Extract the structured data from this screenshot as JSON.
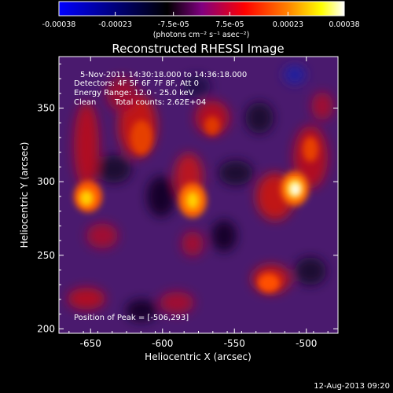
{
  "colorbar": {
    "tick_labels": [
      "-0.00038",
      "-0.00023",
      "-7.5e-05",
      "7.5e-05",
      "0.00023",
      "0.00038"
    ],
    "tick_values": [
      -0.00038,
      -0.00023,
      -7.5e-05,
      7.5e-05,
      0.00023,
      0.00038
    ],
    "range": [
      -0.00038,
      0.00038
    ],
    "units_label": "(photons cm⁻² s⁻¹ asec⁻²)",
    "colormap": [
      "#0000ff",
      "#000000",
      "#800080",
      "#ff0000",
      "#ff8000",
      "#ffff00",
      "#ffffff"
    ]
  },
  "annotations": {
    "time_range": "5-Nov-2011 14:30:18.000 to 14:36:18.000",
    "detectors": "Detectors: 4F 5F 6F 7F 8F, Att 0",
    "energy": "Energy Range: 12.0 - 25.0 keV",
    "method": "Clean",
    "total_counts": "Total counts: 2.62E+04",
    "peak": "Position of Peak = [-506,293]",
    "timestamp": "12-Aug-2013 09:20"
  },
  "chart_data": {
    "type": "heatmap",
    "title": "Reconstructed RHESSI Image",
    "xlabel": "Heliocentric X (arcsec)",
    "ylabel": "Heliocentric Y (arcsec)",
    "xlim": [
      -672,
      -478
    ],
    "ylim": [
      197,
      385
    ],
    "xticks": [
      -650,
      -600,
      -550,
      -500
    ],
    "yticks": [
      200,
      250,
      300,
      350
    ],
    "peak_position": [
      -506,
      293
    ],
    "bright_sources": [
      {
        "x": -506,
        "y": 293,
        "level": 1.0
      },
      {
        "x": -578,
        "y": 287,
        "level": 0.82
      },
      {
        "x": -656,
        "y": 288,
        "level": 0.78
      },
      {
        "x": -622,
        "y": 340,
        "level": 0.55
      },
      {
        "x": -565,
        "y": 352,
        "level": 0.45
      },
      {
        "x": -522,
        "y": 228,
        "level": 0.6
      },
      {
        "x": -604,
        "y": 228,
        "level": 0.45
      },
      {
        "x": -640,
        "y": 215,
        "level": 0.4
      },
      {
        "x": -505,
        "y": 340,
        "level": 0.35
      }
    ]
  }
}
